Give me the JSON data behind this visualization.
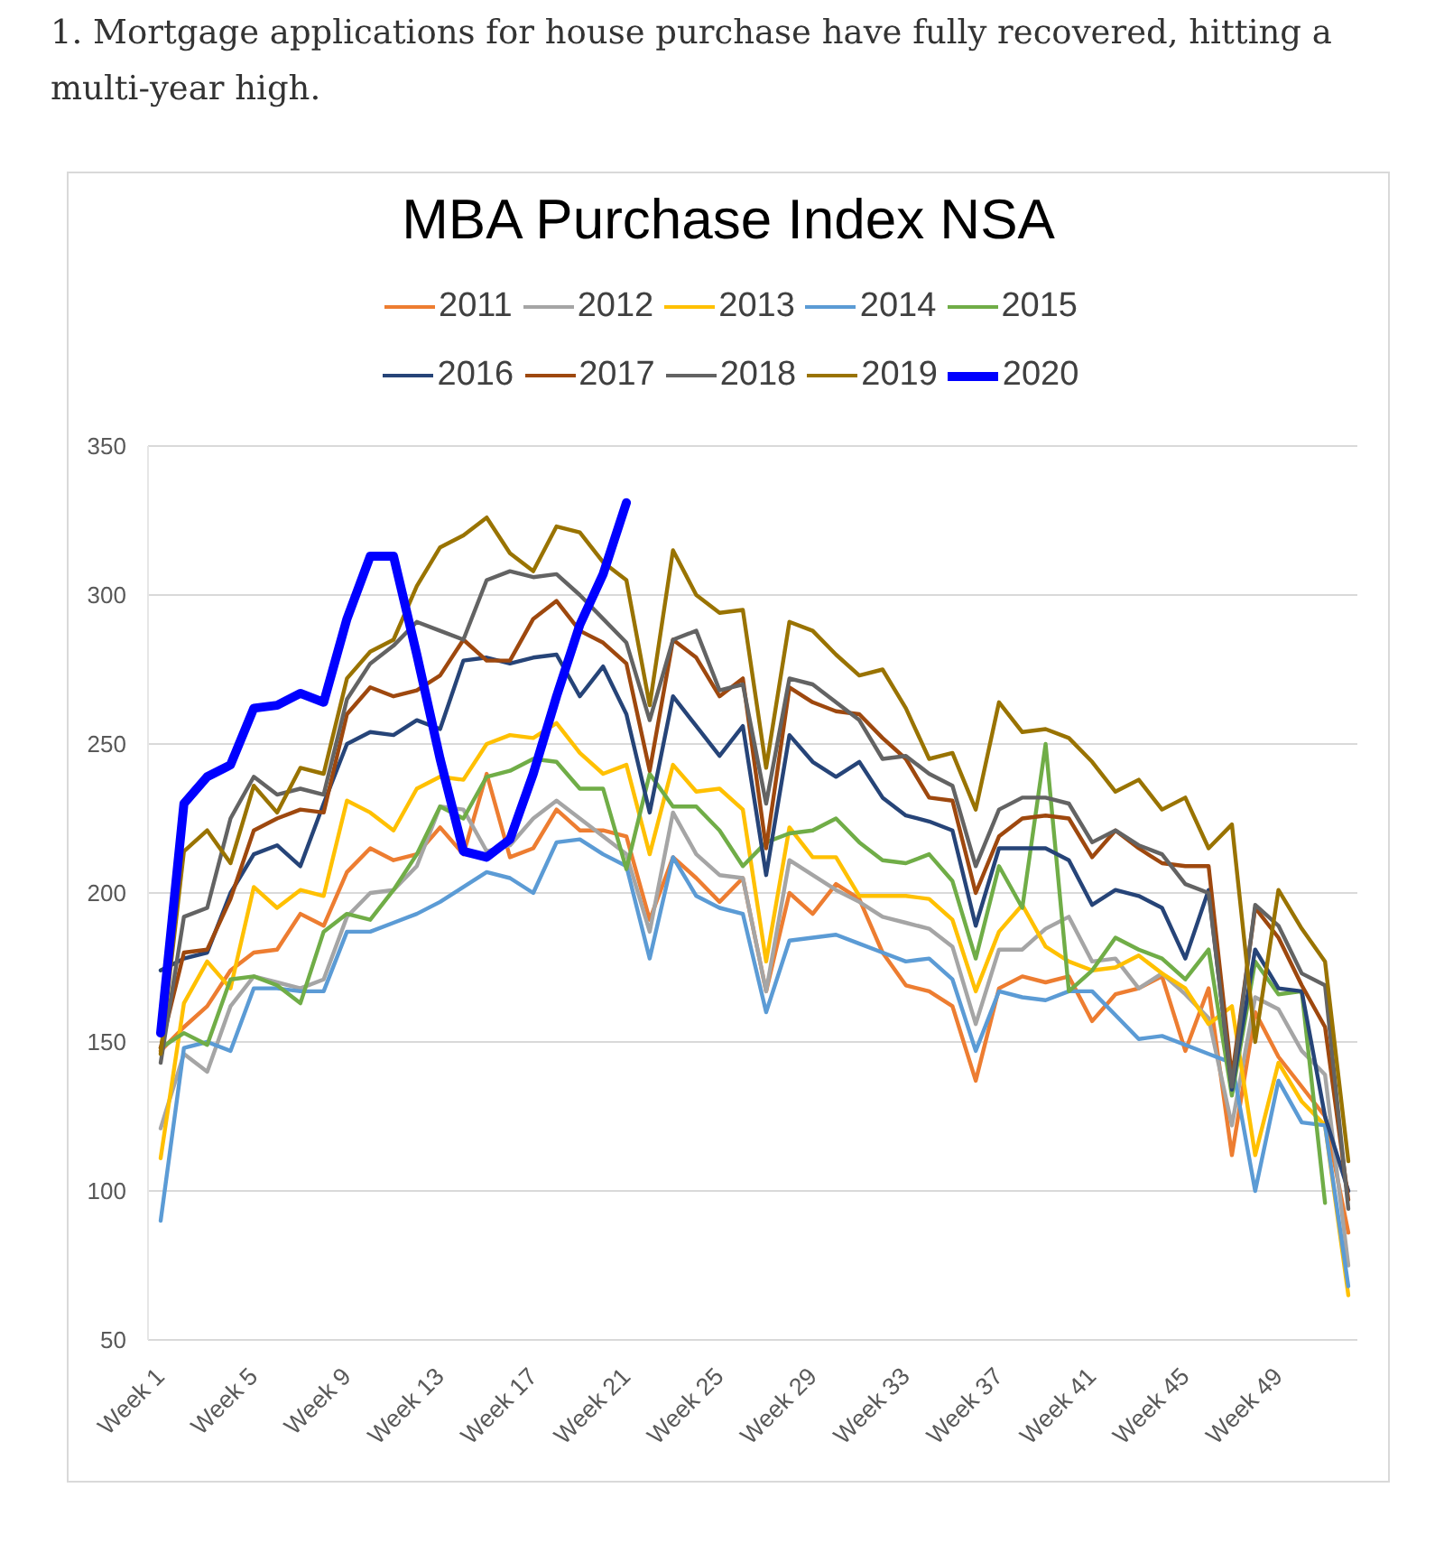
{
  "chart_data": {
    "type": "line",
    "title": "MBA Purchase Index NSA",
    "annotations": [
      "1. Mortgage applications for house purchase have fully recovered, hitting a multi-year high."
    ],
    "categories": [
      "Week 1",
      null,
      null,
      null,
      "Week 5",
      null,
      null,
      null,
      "Week 9",
      null,
      null,
      null,
      "Week 13",
      null,
      null,
      null,
      "Week 17",
      null,
      null,
      null,
      "Week 21",
      null,
      null,
      null,
      "Week 25",
      null,
      null,
      null,
      "Week 29",
      null,
      null,
      null,
      "Week 33",
      null,
      null,
      null,
      "Week 37",
      null,
      null,
      null,
      "Week 41",
      null,
      null,
      null,
      "Week 45",
      null,
      null,
      null,
      "Week 49",
      null,
      null,
      null
    ],
    "series": [
      {
        "name": "2011",
        "color": "#ed7d31",
        "values": [
          147,
          155,
          162,
          174,
          180,
          181,
          193,
          189,
          207,
          215,
          211,
          213,
          222,
          213,
          240,
          212,
          215,
          228,
          221,
          221,
          219,
          191,
          212,
          205,
          197,
          205,
          167,
          200,
          193,
          203,
          198,
          180,
          169,
          167,
          162,
          137,
          168,
          172,
          170,
          172,
          157,
          166,
          168,
          172,
          147,
          168,
          112,
          160,
          145,
          135,
          125,
          86
        ]
      },
      {
        "name": "2012",
        "color": "#a5a5a5",
        "values": [
          121,
          146,
          140,
          162,
          172,
          170,
          168,
          171,
          192,
          200,
          201,
          209,
          229,
          228,
          214,
          216,
          225,
          231,
          225,
          219,
          213,
          187,
          227,
          213,
          206,
          205,
          167,
          211,
          206,
          201,
          197,
          192,
          190,
          188,
          182,
          156,
          181,
          181,
          188,
          192,
          177,
          178,
          168,
          173,
          166,
          158,
          122,
          165,
          161,
          147,
          139,
          75
        ]
      },
      {
        "name": "2013",
        "color": "#ffc000",
        "values": [
          111,
          163,
          177,
          168,
          202,
          195,
          201,
          199,
          231,
          227,
          221,
          235,
          239,
          238,
          250,
          253,
          252,
          257,
          247,
          240,
          243,
          213,
          243,
          234,
          235,
          228,
          177,
          222,
          212,
          212,
          199,
          199,
          199,
          198,
          191,
          167,
          187,
          196,
          182,
          177,
          174,
          175,
          179,
          173,
          168,
          156,
          162,
          112,
          143,
          130,
          122,
          65
        ]
      },
      {
        "name": "2014",
        "color": "#5b9bd5",
        "values": [
          90,
          148,
          150,
          147,
          168,
          168,
          167,
          167,
          187,
          187,
          190,
          193,
          197,
          202,
          207,
          205,
          200,
          217,
          218,
          213,
          209,
          178,
          212,
          199,
          195,
          193,
          160,
          184,
          185,
          186,
          183,
          180,
          177,
          178,
          171,
          147,
          167,
          165,
          164,
          167,
          167,
          159,
          151,
          152,
          149,
          146,
          143,
          100,
          137,
          123,
          122,
          68
        ]
      },
      {
        "name": "2015",
        "color": "#70ad47",
        "values": [
          148,
          153,
          149,
          171,
          172,
          169,
          163,
          187,
          193,
          191,
          201,
          213,
          229,
          225,
          239,
          241,
          245,
          244,
          235,
          235,
          208,
          240,
          229,
          229,
          221,
          209,
          217,
          220,
          221,
          225,
          217,
          211,
          210,
          213,
          204,
          178,
          209,
          195,
          250,
          167,
          174,
          185,
          181,
          178,
          171,
          181,
          132,
          177,
          166,
          167,
          96,
          null
        ]
      },
      {
        "name": "2016",
        "color": "#264478",
        "values": [
          174,
          178,
          180,
          200,
          213,
          216,
          209,
          230,
          250,
          254,
          253,
          258,
          255,
          278,
          279,
          277,
          279,
          280,
          266,
          276,
          260,
          227,
          266,
          256,
          246,
          256,
          206,
          253,
          244,
          239,
          244,
          232,
          226,
          224,
          221,
          189,
          215,
          215,
          215,
          211,
          196,
          201,
          199,
          195,
          178,
          201,
          134,
          181,
          168,
          167,
          125,
          100
        ]
      },
      {
        "name": "2017",
        "color": "#9e480e",
        "values": [
          148,
          180,
          181,
          198,
          221,
          225,
          228,
          227,
          260,
          269,
          266,
          268,
          273,
          285,
          278,
          278,
          292,
          298,
          288,
          284,
          277,
          241,
          285,
          279,
          266,
          272,
          215,
          269,
          264,
          261,
          260,
          252,
          245,
          232,
          231,
          200,
          219,
          225,
          226,
          225,
          212,
          221,
          215,
          210,
          209,
          209,
          138,
          195,
          185,
          169,
          155,
          97
        ]
      },
      {
        "name": "2018",
        "color": "#636363",
        "values": [
          143,
          192,
          195,
          225,
          239,
          233,
          235,
          233,
          265,
          277,
          283,
          291,
          288,
          285,
          305,
          308,
          306,
          307,
          300,
          292,
          284,
          258,
          285,
          288,
          268,
          270,
          230,
          272,
          270,
          264,
          258,
          245,
          246,
          240,
          236,
          209,
          228,
          232,
          232,
          230,
          217,
          221,
          216,
          213,
          203,
          200,
          135,
          196,
          189,
          173,
          169,
          94
        ]
      },
      {
        "name": "2019",
        "color": "#997300",
        "values": [
          146,
          214,
          221,
          210,
          236,
          227,
          242,
          240,
          272,
          281,
          285,
          303,
          316,
          320,
          326,
          314,
          308,
          323,
          321,
          311,
          305,
          263,
          315,
          300,
          294,
          295,
          242,
          291,
          288,
          280,
          273,
          275,
          262,
          245,
          247,
          228,
          264,
          254,
          255,
          252,
          244,
          234,
          238,
          228,
          232,
          215,
          223,
          150,
          201,
          188,
          177,
          110
        ]
      },
      {
        "name": "2020",
        "color": "#0000ff",
        "values": [
          153,
          230,
          239,
          243,
          262,
          263,
          267,
          264,
          292,
          313,
          313,
          280,
          245,
          214,
          212,
          218,
          240,
          266,
          290,
          307,
          331,
          null,
          null,
          null,
          null,
          null,
          null,
          null,
          null,
          null,
          null,
          null,
          null,
          null,
          null,
          null,
          null,
          null,
          null,
          null,
          null,
          null,
          null,
          null,
          null,
          null,
          null,
          null,
          null,
          null,
          null,
          null
        ]
      }
    ],
    "ylim": [
      50,
      350
    ],
    "yticks": [
      50,
      100,
      150,
      200,
      250,
      300,
      350
    ],
    "grid": "y",
    "legend": "top"
  }
}
